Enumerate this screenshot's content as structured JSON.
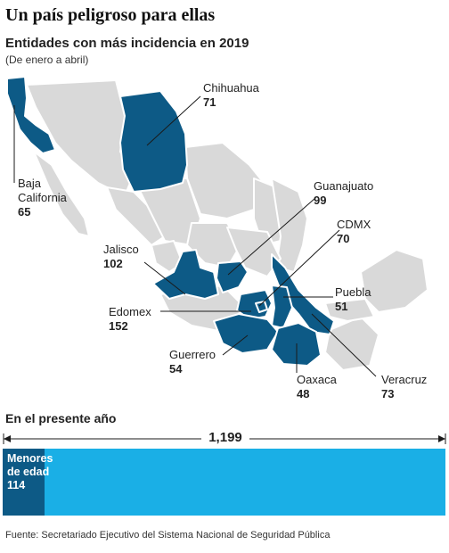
{
  "title": "Un país peligroso para ellas",
  "subtitle": "Entidades con más incidencia en 2019",
  "period": "(De enero a abril)",
  "colors": {
    "highlight": "#0d5a86",
    "base": "#d9d9d9",
    "bar": "#1aafe6",
    "minors": "#0d5a86"
  },
  "states": [
    {
      "name": "Chihuahua",
      "value": "71"
    },
    {
      "name": "Baja California",
      "value": "65"
    },
    {
      "name": "Guanajuato",
      "value": "99"
    },
    {
      "name": "CDMX",
      "value": "70"
    },
    {
      "name": "Jalisco",
      "value": "102"
    },
    {
      "name": "Puebla",
      "value": "51"
    },
    {
      "name": "Edomex",
      "value": "152"
    },
    {
      "name": "Guerrero",
      "value": "54"
    },
    {
      "name": "Oaxaca",
      "value": "48"
    },
    {
      "name": "Veracruz",
      "value": "73"
    }
  ],
  "year_section": {
    "heading": "En el presente año",
    "total": "1,199",
    "total_value": 1199,
    "minors_label_1": "Menores",
    "minors_label_2": "de edad",
    "minors": "114",
    "minors_value": 114
  },
  "source": "Fuente: Secretariado Ejecutivo del Sistema Nacional de Seguridad Pública"
}
